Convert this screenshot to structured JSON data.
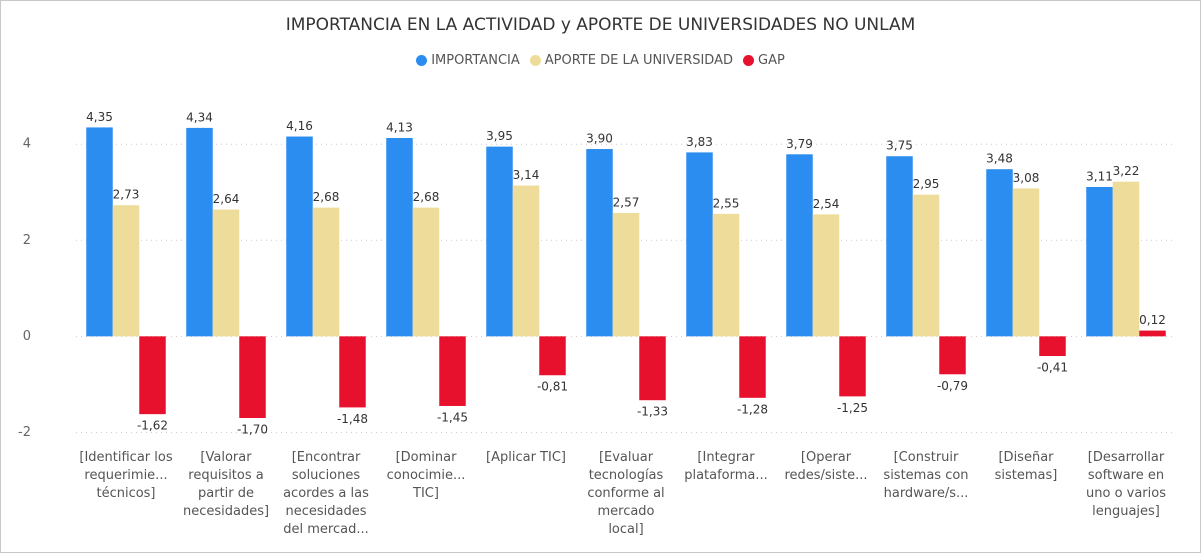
{
  "chart_data": {
    "type": "bar",
    "title": "IMPORTANCIA EN LA ACTIVIDAD y APORTE DE UNIVERSIDADES NO UNLAM",
    "categories": [
      "[Identificar los requerimie... técnicos]",
      "[Valorar requisitos a partir de necesidades]",
      "[Encontrar soluciones acordes a las necesidades del mercad...",
      "[Dominar conocimie... TIC]",
      "[Aplicar TIC]",
      "[Evaluar tecnologías conforme al mercado local]",
      "[Integrar plataforma...",
      "[Operar redes/siste...",
      "[Construir sistemas con hardware/s...",
      "[Diseñar sistemas]",
      "[Desarrollar software en uno o varios lenguajes]"
    ],
    "series": [
      {
        "name": "IMPORTANCIA",
        "color": "#2b8def",
        "values": [
          4.35,
          4.34,
          4.16,
          4.13,
          3.95,
          3.9,
          3.83,
          3.79,
          3.75,
          3.48,
          3.11
        ],
        "value_labels": [
          "4,35",
          "4,34",
          "4,16",
          "4,13",
          "3,95",
          "3,90",
          "3,83",
          "3,79",
          "3,75",
          "3,48",
          "3,11"
        ]
      },
      {
        "name": "APORTE DE LA UNIVERSIDAD",
        "color": "#eedc9a",
        "values": [
          2.73,
          2.64,
          2.68,
          2.68,
          3.14,
          2.57,
          2.55,
          2.54,
          2.95,
          3.08,
          3.22
        ],
        "value_labels": [
          "2,73",
          "2,64",
          "2,68",
          "2,68",
          "3,14",
          "2,57",
          "2,55",
          "2,54",
          "2,95",
          "3,08",
          "3,22"
        ]
      },
      {
        "name": "GAP",
        "color": "#e8112d",
        "values": [
          -1.62,
          -1.7,
          -1.48,
          -1.45,
          -0.81,
          -1.33,
          -1.28,
          -1.25,
          -0.79,
          -0.41,
          0.12
        ],
        "value_labels": [
          "-1,62",
          "-1,70",
          "-1,48",
          "-1,45",
          "-0,81",
          "-1,33",
          "-1,28",
          "-1,25",
          "-0,79",
          "-0,41",
          "0,12"
        ]
      }
    ],
    "ylim": [
      -2.2,
      4.9
    ],
    "yticks": [
      -2,
      0,
      2,
      4
    ],
    "grid": true,
    "legend": "top"
  }
}
